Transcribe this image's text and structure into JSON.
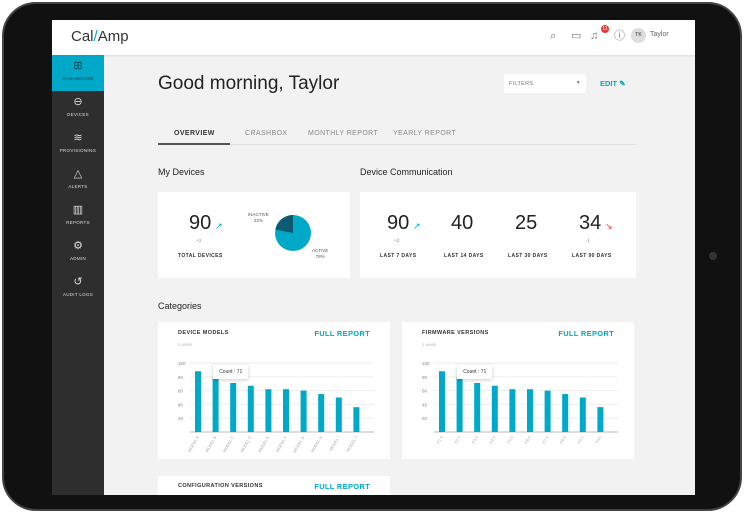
{
  "header": {
    "logo": "Cal/Amp",
    "user_initials": "TK",
    "user_name": "Taylor",
    "notification_count": "11"
  },
  "sidebar": {
    "items": [
      {
        "label": "DASHBOARD",
        "icon": "grid-icon",
        "glyph": "⊞",
        "active": true
      },
      {
        "label": "DEVICES",
        "icon": "device-icon",
        "glyph": "⊖"
      },
      {
        "label": "PROVISIONING",
        "icon": "layers-icon",
        "glyph": "≋"
      },
      {
        "label": "ALERTS",
        "icon": "warning-icon",
        "glyph": "△"
      },
      {
        "label": "REPORTS",
        "icon": "bar-chart-icon",
        "glyph": "▥"
      },
      {
        "label": "ADMIN",
        "icon": "gear-icon",
        "glyph": "⚙"
      },
      {
        "label": "AUDIT LOGS",
        "icon": "history-icon",
        "glyph": "↺"
      }
    ]
  },
  "main": {
    "greeting": "Good morning, Taylor",
    "filters_label": "FILTERS",
    "edit_label": "EDIT",
    "tabs": [
      {
        "label": "OVERVIEW"
      },
      {
        "label": "CRASHBOX"
      },
      {
        "label": "MONTHLY REPORT"
      },
      {
        "label": "YEARLY REPORT"
      }
    ],
    "my_devices": {
      "title": "My Devices",
      "total": "90",
      "delta": "+3",
      "label": "TOTAL DEVICES",
      "inactive_label": "INACTIVE",
      "inactive_pct": "22%",
      "active_label": "ACTIVE",
      "active_pct": "78%",
      "inactive_value": 22,
      "active_value": 78
    },
    "communication": {
      "title": "Device Communication",
      "stats": [
        {
          "value": "90",
          "delta": "+3",
          "trend": "up",
          "label": "LAST 7 DAYS"
        },
        {
          "value": "40",
          "delta": "",
          "trend": "",
          "label": "LAST 14 DAYS"
        },
        {
          "value": "25",
          "delta": "",
          "trend": "",
          "label": "LAST 30 DAYS"
        },
        {
          "value": "34",
          "delta": "-1",
          "trend": "down",
          "label": "LAST 90 DAYS"
        }
      ]
    },
    "categories_title": "Categories",
    "full_report": "FULL REPORT",
    "config_title": "CONFIGURATION VERSIONS"
  },
  "colors": {
    "accent": "#00a9c8",
    "dark_slice": "#0e5a70",
    "down": "#e53935",
    "sidebar": "#2e2e2e"
  },
  "chart_data": [
    {
      "type": "bar",
      "title": "DEVICE MODELS",
      "subtitle": "1 week",
      "categories": [
        "MODEL A",
        "MODEL B",
        "MODEL C",
        "MODEL D",
        "MODEL E",
        "MODEL F",
        "MODEL G",
        "MODEL H",
        "MODEL I",
        "MODEL J"
      ],
      "values": [
        88,
        79,
        71,
        67,
        62,
        62,
        60,
        55,
        50,
        36
      ],
      "yticks": [
        20,
        40,
        60,
        80,
        100
      ],
      "ylim": [
        0,
        100
      ],
      "tooltip": "Count : 71",
      "tooltip_index": 2
    },
    {
      "type": "bar",
      "title": "FIRMWARE VERSIONS",
      "subtitle": "1 week",
      "categories": [
        "F1.0",
        "F2.0",
        "F3.0",
        "F4.0",
        "F5.0",
        "F6.0",
        "F7.0",
        "F8.0",
        "F9.0",
        "F10"
      ],
      "values": [
        88,
        79,
        71,
        67,
        62,
        62,
        60,
        55,
        50,
        36
      ],
      "yticks": [
        20,
        40,
        60,
        80,
        100
      ],
      "ylim": [
        0,
        100
      ],
      "tooltip": "Count : 71",
      "tooltip_index": 2
    }
  ]
}
